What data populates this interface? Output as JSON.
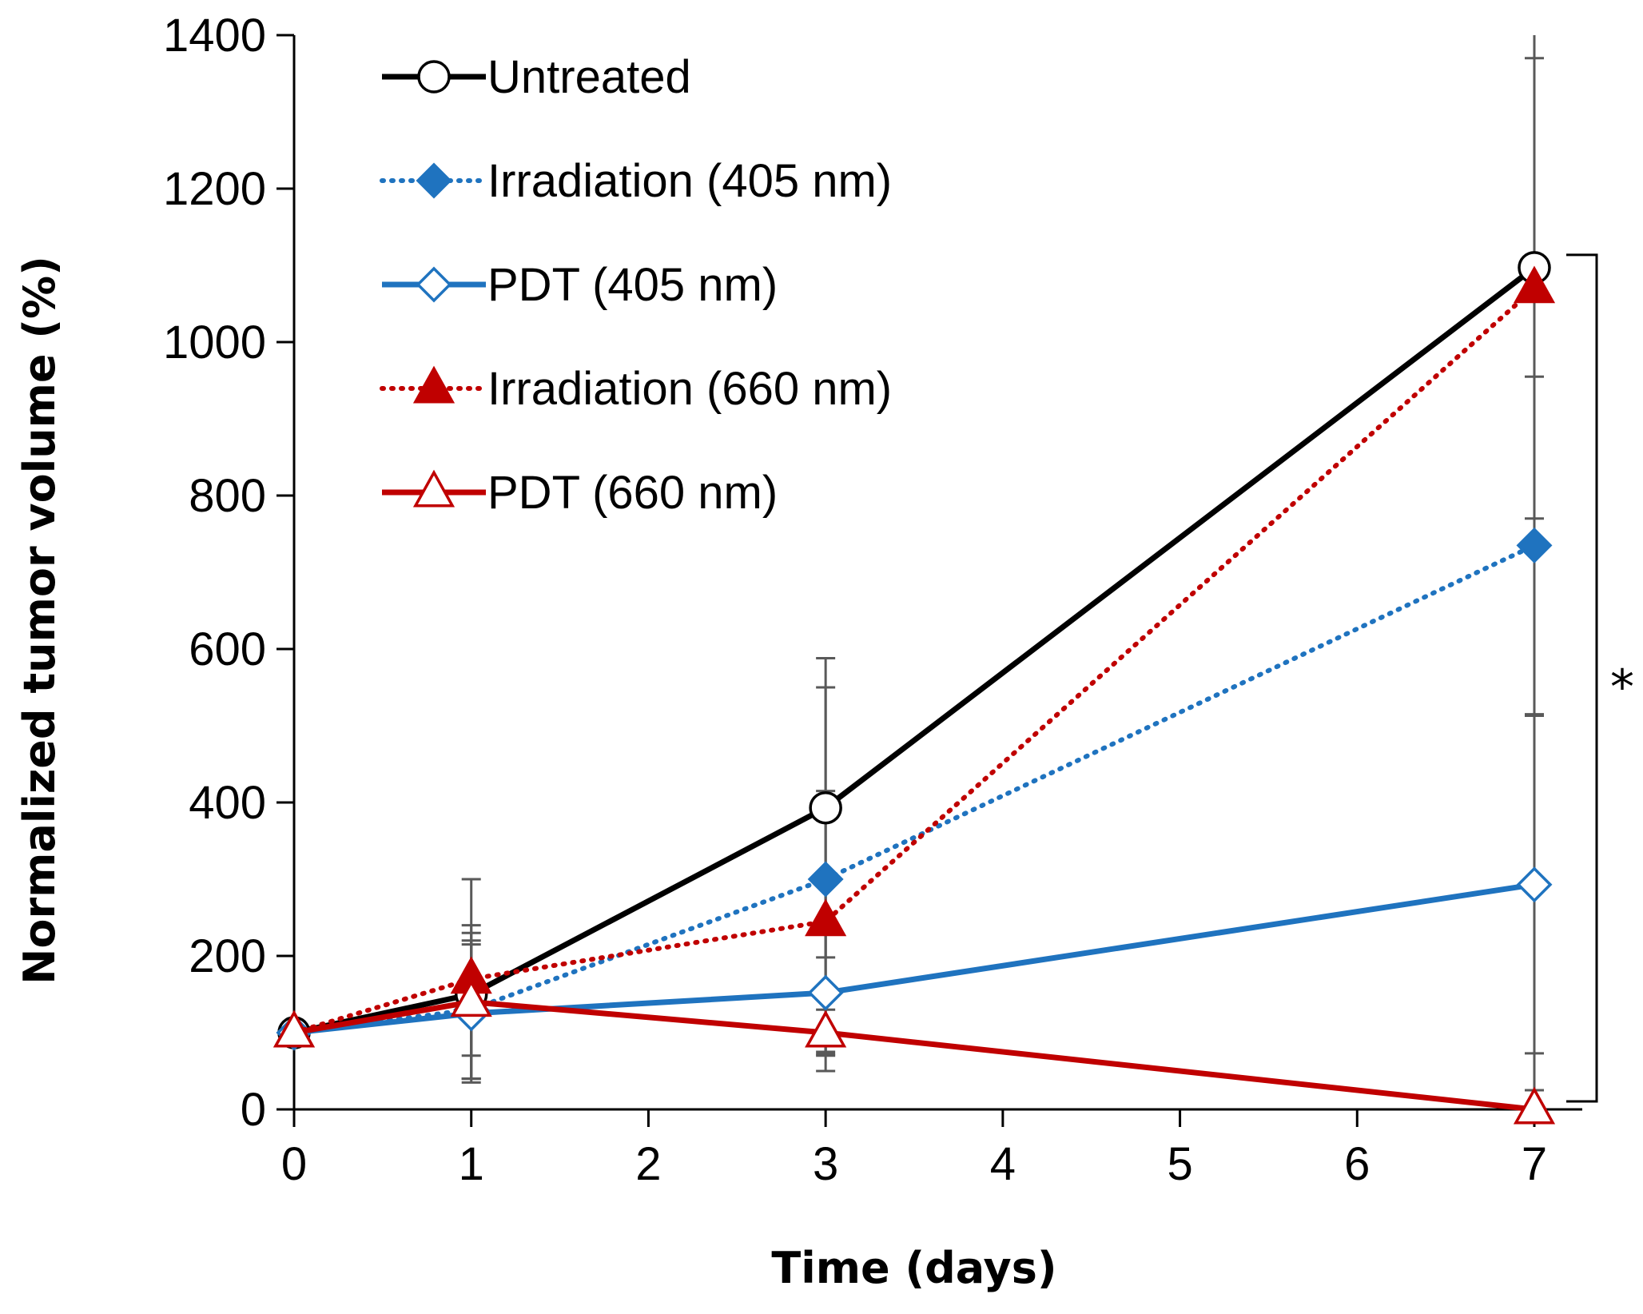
{
  "chart_data": {
    "type": "line",
    "title": "",
    "xlabel": "Time (days)",
    "ylabel": "Normalized tumor volume (%)",
    "xlim": [
      0,
      7
    ],
    "ylim": [
      0,
      1400
    ],
    "xticks": [
      0,
      1,
      2,
      3,
      4,
      5,
      6,
      7
    ],
    "xtick_labels": [
      "0",
      "1",
      "2",
      "3",
      "4",
      "5",
      "6",
      "7"
    ],
    "yticks": [
      0,
      200,
      400,
      600,
      800,
      1000,
      1200,
      1400
    ],
    "ytick_labels": [
      "0",
      "200",
      "400",
      "600",
      "800",
      "1000",
      "1200",
      "1400"
    ],
    "grid": false,
    "legend_position": "top-left",
    "x": [
      0,
      1,
      3,
      7
    ],
    "series": [
      {
        "name": "Untreated",
        "color": "#000000",
        "line": "solid",
        "marker": "circle-open",
        "values": [
          100,
          150,
          393,
          1097
        ],
        "errors": [
          5,
          80,
          195,
          1250
        ]
      },
      {
        "name": "Irradiation (405 nm)",
        "color": "#1F73BF",
        "line": "dotted",
        "marker": "diamond-filled",
        "values": [
          100,
          130,
          300,
          735
        ],
        "errors": [
          5,
          90,
          250,
          220
        ]
      },
      {
        "name": "PDT (405 nm)",
        "color": "#1F73BF",
        "line": "solid",
        "marker": "diamond-open",
        "values": [
          100,
          125,
          152,
          293
        ],
        "errors": [
          5,
          90,
          80,
          220
        ]
      },
      {
        "name": "Irradiation (660 nm)",
        "color": "#C00000",
        "line": "dotted",
        "marker": "triangle-filled",
        "values": [
          100,
          170,
          245,
          1070
        ],
        "errors": [
          5,
          130,
          170,
          300
        ]
      },
      {
        "name": "PDT (660 nm)",
        "color": "#C00000",
        "line": "solid",
        "marker": "triangle-open",
        "values": [
          100,
          140,
          100,
          0
        ],
        "errors": [
          5,
          100,
          30,
          25
        ]
      }
    ],
    "annotations": [
      {
        "text": "*",
        "type": "significance-bracket",
        "from": 1097,
        "to": 0
      }
    ]
  }
}
